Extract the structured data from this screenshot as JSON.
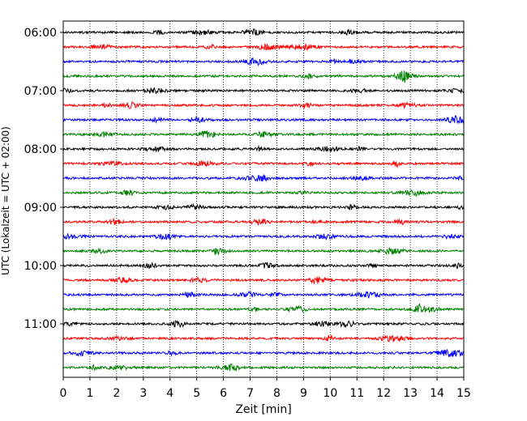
{
  "chart_data": {
    "type": "line",
    "title": "",
    "xlabel": "Zeit  [min]",
    "ylabel": "UTC (Lokalzeit = UTC + 02:00)",
    "xlim": [
      0,
      15
    ],
    "x_ticks": [
      0,
      1,
      2,
      3,
      4,
      5,
      6,
      7,
      8,
      9,
      10,
      11,
      12,
      13,
      14,
      15
    ],
    "grid": "vertical dotted lines at each minute",
    "row_interval_minutes": 15,
    "row_colors": [
      "#000000",
      "#ff0000",
      "#0000ff",
      "#008000"
    ],
    "rows": [
      {
        "start": "06:00",
        "color": "#000000"
      },
      {
        "start": "06:15",
        "color": "#ff0000"
      },
      {
        "start": "06:30",
        "color": "#0000ff"
      },
      {
        "start": "06:45",
        "color": "#008000"
      },
      {
        "start": "07:00",
        "color": "#000000"
      },
      {
        "start": "07:15",
        "color": "#ff0000"
      },
      {
        "start": "07:30",
        "color": "#0000ff"
      },
      {
        "start": "07:45",
        "color": "#008000"
      },
      {
        "start": "08:00",
        "color": "#000000"
      },
      {
        "start": "08:15",
        "color": "#ff0000"
      },
      {
        "start": "08:30",
        "color": "#0000ff"
      },
      {
        "start": "08:45",
        "color": "#008000"
      },
      {
        "start": "09:00",
        "color": "#000000"
      },
      {
        "start": "09:15",
        "color": "#ff0000"
      },
      {
        "start": "09:30",
        "color": "#0000ff"
      },
      {
        "start": "09:45",
        "color": "#008000"
      },
      {
        "start": "10:00",
        "color": "#000000"
      },
      {
        "start": "10:15",
        "color": "#ff0000"
      },
      {
        "start": "10:30",
        "color": "#0000ff"
      },
      {
        "start": "10:45",
        "color": "#008000"
      },
      {
        "start": "11:00",
        "color": "#000000"
      },
      {
        "start": "11:15",
        "color": "#ff0000"
      },
      {
        "start": "11:30",
        "color": "#0000ff"
      },
      {
        "start": "11:45",
        "color": "#008000"
      }
    ],
    "y_tick_labels": [
      "06:00",
      "07:00",
      "08:00",
      "09:00",
      "10:00",
      "11:00"
    ]
  }
}
